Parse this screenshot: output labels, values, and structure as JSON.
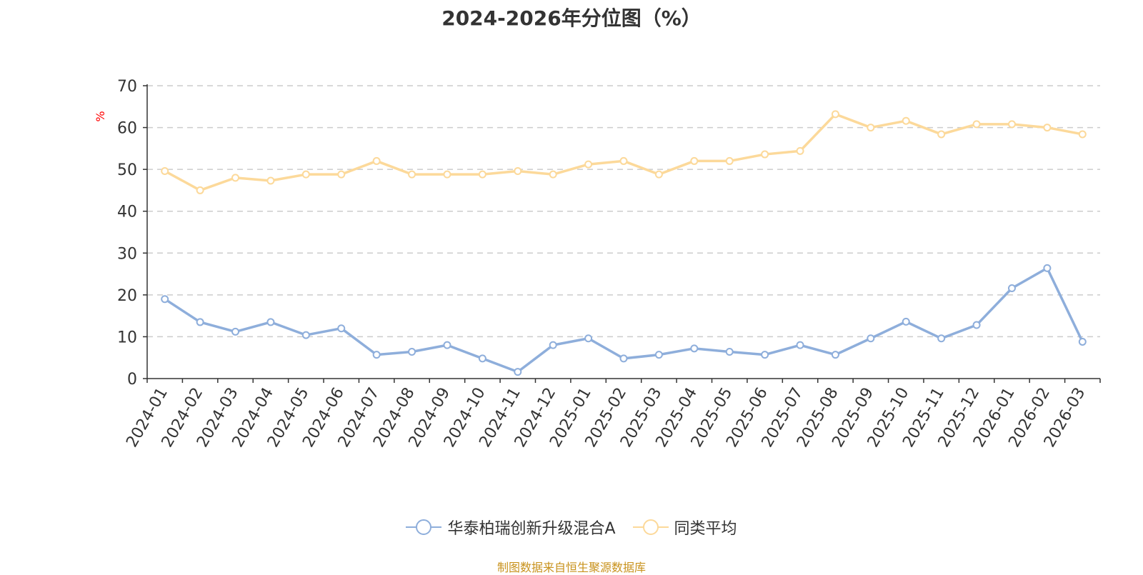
{
  "chart_data": {
    "type": "line",
    "title": "2024-2026年分位图（%）",
    "ylabel": "%",
    "xlabel": "",
    "ylim": [
      0,
      70
    ],
    "yticks": [
      0,
      10,
      20,
      30,
      40,
      50,
      60,
      70
    ],
    "grid": true,
    "legend_position": "bottom",
    "categories": [
      "2024-01",
      "2024-02",
      "2024-03",
      "2024-04",
      "2024-05",
      "2024-06",
      "2024-07",
      "2024-08",
      "2024-09",
      "2024-10",
      "2024-11",
      "2024-12",
      "2025-01",
      "2025-02",
      "2025-03",
      "2025-04",
      "2025-05",
      "2025-06",
      "2025-07",
      "2025-08",
      "2025-09",
      "2025-10",
      "2025-11",
      "2025-12",
      "2026-01",
      "2026-02",
      "2026-03"
    ],
    "series": [
      {
        "name": "华泰柏瑞创新升级混合A",
        "color": "#8eaedb",
        "values": [
          19.0,
          13.5,
          11.2,
          13.5,
          10.4,
          12.0,
          5.7,
          6.4,
          8.0,
          4.8,
          1.6,
          8.0,
          9.6,
          4.8,
          5.7,
          7.2,
          6.4,
          5.7,
          8.0,
          5.7,
          9.6,
          13.6,
          9.6,
          12.8,
          21.6,
          26.4,
          8.8
        ]
      },
      {
        "name": "同类平均",
        "color": "#fcd99a",
        "values": [
          49.6,
          45.0,
          48.0,
          47.3,
          48.8,
          48.8,
          52.0,
          48.8,
          48.8,
          48.8,
          49.6,
          48.8,
          51.2,
          52.0,
          48.8,
          52.0,
          52.0,
          53.6,
          54.4,
          63.2,
          60.0,
          61.6,
          58.4,
          60.8,
          60.8,
          60.0,
          58.4
        ]
      }
    ]
  },
  "source_note": "制图数据来自恒生聚源数据库"
}
